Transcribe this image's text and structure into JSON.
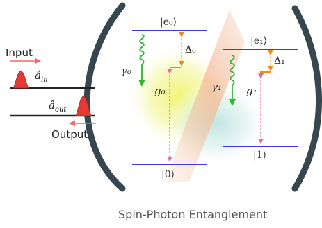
{
  "labels": {
    "input": "Input",
    "output": "Output",
    "a_in": "â in",
    "a_in_base": "â",
    "a_in_sub": "in",
    "a_out_base": "â",
    "a_out_sub": "out",
    "e0": "|e₀⟩",
    "e1": "|e₁⟩",
    "ground0": "|0⟩",
    "ground1": "|1⟩",
    "delta0": "Δ₀",
    "delta1": "Δ₁",
    "gamma0": "γ₀",
    "gamma1": "γ₁",
    "g0": "g₀",
    "g1": "g₁"
  },
  "caption": "Spin-Photon Entanglement",
  "colors": {
    "mirror": "#37474f",
    "level_line": "#3b3bd6",
    "decay": "#2fb52f",
    "coupling": "#e86aa8",
    "detuning": "#f08a1c",
    "pulse": "#e53935",
    "arrow": "#f06b6b",
    "waveguide": "#222222",
    "glow_yellow": "#f3f58a",
    "glow_teal": "#bfe6e3",
    "beam": "#f6c7a8"
  }
}
